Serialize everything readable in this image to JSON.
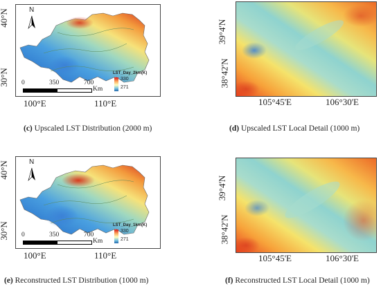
{
  "panels": [
    {
      "id": "c",
      "caption_letter": "(c)",
      "caption": "Upscaled LST Distribution (2000 m)",
      "lat_labels": [
        "40°N",
        "30°N"
      ],
      "lon_labels": [
        "100°E",
        "110°E"
      ],
      "scale_numbers": [
        "0",
        "350",
        "700"
      ],
      "scale_unit": "Km",
      "north": "N",
      "legend_title": "LST_Day_2km(K)",
      "legend_high": "330",
      "legend_low": "271"
    },
    {
      "id": "d",
      "caption_letter": "(d)",
      "caption": "Upscaled LST Local Detail (1000 m)",
      "lat_labels": [
        "39°4'N",
        "38°42'N"
      ],
      "lon_labels": [
        "105°45'E",
        "106°30'E"
      ]
    },
    {
      "id": "e",
      "caption_letter": "(e)",
      "caption": "Reconstructed LST Distribution (1000 m)",
      "lat_labels": [
        "40°N",
        "30°N"
      ],
      "lon_labels": [
        "100°E",
        "110°E"
      ],
      "scale_numbers": [
        "0",
        "350",
        "700"
      ],
      "scale_unit": "Km",
      "north": "N",
      "legend_title": "LST_Day_1km(K)",
      "legend_high": "330",
      "legend_low": "271"
    },
    {
      "id": "f",
      "caption_letter": "(f)",
      "caption": "Reconstructed LST Local Detail (1000 m)",
      "lat_labels": [
        "39°4'N",
        "38°42'N"
      ],
      "lon_labels": [
        "105°45'E",
        "106°30'E"
      ]
    }
  ],
  "colors": {
    "hot": "#d7301f",
    "warm": "#fc8d59",
    "mid": "#fee08b",
    "cool": "#91d4c8",
    "cold": "#2b7bd6"
  }
}
